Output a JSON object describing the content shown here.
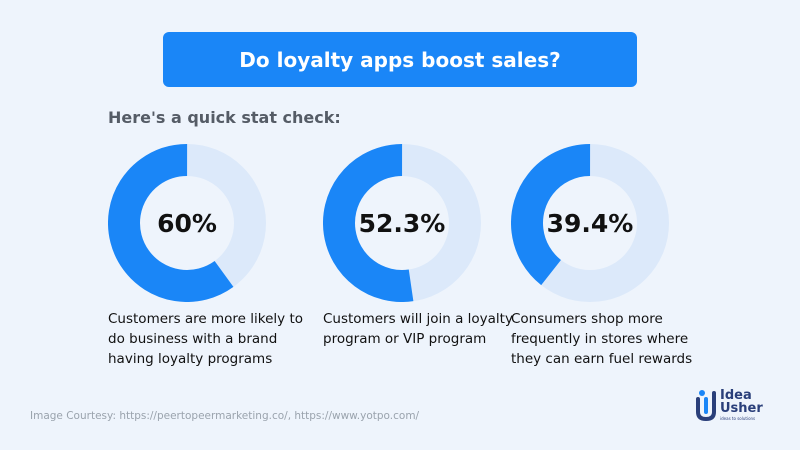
{
  "header": {
    "title": "Do loyalty apps boost sales?",
    "subtitle": "Here's a quick stat check:"
  },
  "colors": {
    "accent": "#1a86f7",
    "track": "#dce9fa",
    "background": "#eef4fc"
  },
  "chart_data": {
    "type": "donut",
    "charts": [
      {
        "value": 60,
        "label": "60%",
        "caption": "Customers are more likely to do business with a brand having loyalty programs"
      },
      {
        "value": 52.3,
        "label": "52.3%",
        "caption": "Customers will join a loyalty program or VIP program"
      },
      {
        "value": 39.4,
        "label": "39.4%",
        "caption": "Consumers shop more frequently in stores where they can earn fuel rewards"
      }
    ]
  },
  "footer": {
    "courtesy": "Image Courtesy: https://peertopeermarketing.co/, https://www.yotpo.com/"
  },
  "logo": {
    "line1": "Idea",
    "line2": "Usher",
    "tagline": "ideas to solutions"
  }
}
